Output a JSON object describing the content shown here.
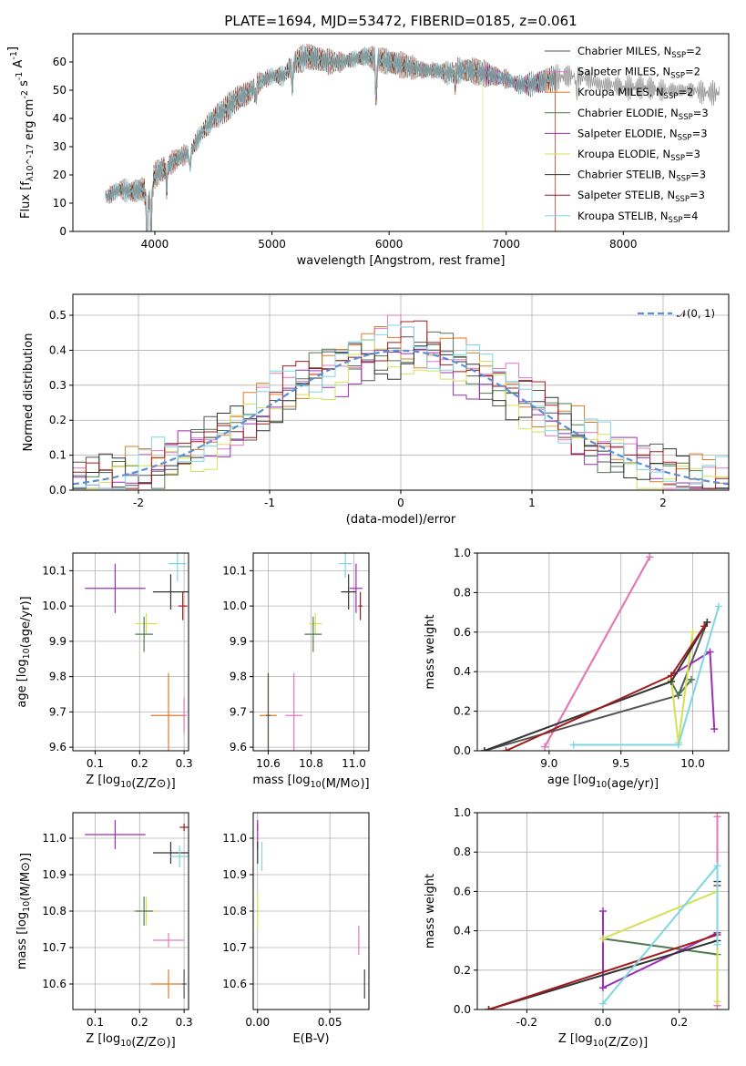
{
  "figure": {
    "title": "PLATE=1694, MJD=53472, FIBERID=0185, z=0.061"
  },
  "colors": {
    "Chabrier MILES": "#555555",
    "Salpeter MILES": "#e377c2",
    "Kroupa MILES": "#e07b2a",
    "Chabrier ELODIE": "#4f7a4f",
    "Salpeter ELODIE": "#9b2fb5",
    "Kroupa ELODIE": "#d4e157",
    "Chabrier STELIB": "#333333",
    "Salpeter STELIB": "#a01c1c",
    "Kroupa STELIB": "#7fd6e0",
    "normal": "#5b8fd6",
    "spectrum": "#999999"
  },
  "chart_data": [
    {
      "id": "spectrum",
      "type": "line",
      "xlabel": "wavelength [Angstrom, rest frame]",
      "ylabel": "Flux [f_λ10^-17 erg cm^-2 s^-1 A^-1]",
      "xlim": [
        3300,
        8900
      ],
      "ylim": [
        0,
        70
      ],
      "xticks": [
        4000,
        5000,
        6000,
        7000,
        8000
      ],
      "yticks": [
        0,
        10,
        20,
        30,
        40,
        50,
        60
      ],
      "grid": false,
      "legend_position": "top-right",
      "legend": [
        {
          "name": "Chabrier MILES",
          "sub": "N_SSP=2"
        },
        {
          "name": "Salpeter MILES",
          "sub": "N_SSP=2"
        },
        {
          "name": "Kroupa MILES",
          "sub": "N_SSP=2"
        },
        {
          "name": "Chabrier ELODIE",
          "sub": "N_SSP=3"
        },
        {
          "name": "Salpeter ELODIE",
          "sub": "N_SSP=3"
        },
        {
          "name": "Kroupa ELODIE",
          "sub": "N_SSP=3"
        },
        {
          "name": "Chabrier STELIB",
          "sub": "N_SSP=3"
        },
        {
          "name": "Salpeter STELIB",
          "sub": "N_SSP=3"
        },
        {
          "name": "Kroupa STELIB",
          "sub": "N_SSP=4"
        }
      ],
      "continuum": [
        [
          3580,
          12
        ],
        [
          3700,
          15
        ],
        [
          3800,
          14
        ],
        [
          3900,
          15
        ],
        [
          3950,
          12
        ],
        [
          4000,
          20
        ],
        [
          4100,
          23
        ],
        [
          4200,
          26
        ],
        [
          4300,
          28
        ],
        [
          4400,
          35
        ],
        [
          4500,
          40
        ],
        [
          4600,
          43
        ],
        [
          4700,
          47
        ],
        [
          4800,
          49
        ],
        [
          4900,
          53
        ],
        [
          5000,
          55
        ],
        [
          5100,
          55
        ],
        [
          5150,
          58
        ],
        [
          5200,
          60
        ],
        [
          5300,
          62
        ],
        [
          5400,
          61
        ],
        [
          5500,
          60
        ],
        [
          5600,
          60
        ],
        [
          5700,
          61
        ],
        [
          5800,
          62
        ],
        [
          5900,
          61
        ],
        [
          6000,
          60
        ],
        [
          6100,
          59
        ],
        [
          6200,
          58
        ],
        [
          6300,
          57
        ],
        [
          6400,
          57
        ],
        [
          6500,
          56
        ],
        [
          6600,
          57
        ],
        [
          6700,
          57
        ],
        [
          6800,
          56
        ],
        [
          6900,
          55
        ],
        [
          7000,
          54
        ],
        [
          7100,
          52
        ],
        [
          7200,
          52
        ],
        [
          7300,
          53
        ],
        [
          7400,
          54
        ],
        [
          7500,
          55
        ],
        [
          7600,
          55
        ],
        [
          7700,
          54
        ],
        [
          7800,
          52
        ],
        [
          7900,
          52
        ],
        [
          8000,
          51
        ],
        [
          8100,
          51
        ],
        [
          8200,
          51
        ],
        [
          8300,
          50
        ],
        [
          8400,
          50
        ],
        [
          8500,
          50
        ],
        [
          8600,
          50
        ],
        [
          8700,
          49
        ],
        [
          8820,
          49
        ]
      ],
      "absorption": [
        [
          3933,
          20
        ],
        [
          3968,
          18
        ],
        [
          4101,
          8
        ],
        [
          4300,
          6
        ],
        [
          4861,
          5
        ],
        [
          5175,
          8
        ],
        [
          5890,
          15
        ],
        [
          6563,
          4
        ],
        [
          7600,
          6
        ]
      ],
      "cutoffs": [
        {
          "model": "Kroupa ELODIE",
          "x": 6800
        },
        {
          "model": "Salpeter STELIB",
          "x": 7420
        },
        {
          "model": "Kroupa MILES",
          "x": 7420
        }
      ]
    },
    {
      "id": "residuals",
      "type": "line",
      "xlabel": "(data-model)/error",
      "ylabel": "Normed distribution",
      "xlim": [
        -2.5,
        2.5
      ],
      "ylim": [
        0,
        0.56
      ],
      "xticks": [
        -2,
        -1,
        0,
        1,
        2
      ],
      "yticks": [
        0.0,
        0.1,
        0.2,
        0.3,
        0.4,
        0.5
      ],
      "grid": true,
      "legend_position": "top-right",
      "legend": [
        {
          "name": "𝒩(0, 1)"
        }
      ],
      "bin_width": 0.1
    },
    {
      "id": "age-Z",
      "type": "scatter",
      "xlabel": "Z [log10(Z/Z⊙)]",
      "ylabel": "age  [log10(age/yr)]",
      "xlim": [
        0.05,
        0.31
      ],
      "ylim": [
        9.59,
        10.15
      ],
      "xticks": [
        0.1,
        0.2,
        0.3
      ],
      "yticks": [
        9.6,
        9.7,
        9.8,
        9.9,
        10.0,
        10.1
      ],
      "grid": true,
      "points": [
        {
          "model": "Salpeter ELODIE",
          "x": 0.145,
          "y": 10.05,
          "ex": 0.068,
          "ey": 0.07
        },
        {
          "model": "Kroupa STELIB",
          "x": 0.285,
          "y": 10.12,
          "ex": 0.02,
          "ey": 0.05
        },
        {
          "model": "Chabrier STELIB",
          "x": 0.27,
          "y": 10.04,
          "ex": 0.04,
          "ey": 0.05
        },
        {
          "model": "Salpeter STELIB",
          "x": 0.297,
          "y": 10.0,
          "ex": 0.01,
          "ey": 0.04
        },
        {
          "model": "Kroupa ELODIE",
          "x": 0.215,
          "y": 9.95,
          "ex": 0.025,
          "ey": 0.03
        },
        {
          "model": "Chabrier ELODIE",
          "x": 0.21,
          "y": 9.92,
          "ex": 0.02,
          "ey": 0.05
        },
        {
          "model": "Kroupa MILES",
          "x": 0.265,
          "y": 9.69,
          "ex": 0.04,
          "ey": 0.12
        },
        {
          "model": "Salpeter MILES",
          "x": 0.3,
          "y": 9.69,
          "ex": 0.005,
          "ey": 0.05
        }
      ]
    },
    {
      "id": "age-mass",
      "type": "scatter",
      "xlabel": "mass [log10(M/M⊙)]",
      "ylabel": "",
      "xlim": [
        10.53,
        11.07
      ],
      "ylim": [
        9.59,
        10.15
      ],
      "xticks": [
        10.6,
        10.8,
        11.0
      ],
      "yticks": [
        9.6,
        9.7,
        9.8,
        9.9,
        10.0,
        10.1
      ],
      "grid": true,
      "points": [
        {
          "model": "Kroupa STELIB",
          "x": 10.96,
          "y": 10.12,
          "ex": 0.03,
          "ey": 0.04
        },
        {
          "model": "Salpeter ELODIE",
          "x": 11.01,
          "y": 10.05,
          "ex": 0.03,
          "ey": 0.07
        },
        {
          "model": "Chabrier STELIB",
          "x": 10.975,
          "y": 10.04,
          "ex": 0.035,
          "ey": 0.05
        },
        {
          "model": "Salpeter STELIB",
          "x": 11.03,
          "y": 10.0,
          "ex": 0.01,
          "ey": 0.04
        },
        {
          "model": "Kroupa ELODIE",
          "x": 10.82,
          "y": 9.95,
          "ex": 0.03,
          "ey": 0.03
        },
        {
          "model": "Chabrier ELODIE",
          "x": 10.81,
          "y": 9.92,
          "ex": 0.04,
          "ey": 0.05
        },
        {
          "model": "Kroupa MILES",
          "x": 10.6,
          "y": 9.69,
          "ex": 0.04,
          "ey": 0.12
        },
        {
          "model": "Salpeter MILES",
          "x": 10.72,
          "y": 9.69,
          "ex": 0.04,
          "ey": 0.12
        },
        {
          "model": "Chabrier MILES",
          "x": 10.6,
          "y": 9.69,
          "ex": 0.01,
          "ey": 0.12
        }
      ]
    },
    {
      "id": "weight-age",
      "type": "line",
      "xlabel": "age  [log10(age/yr)]",
      "ylabel": "mass weight",
      "xlim": [
        8.5,
        10.25
      ],
      "ylim": [
        0,
        1
      ],
      "xticks": [
        9.0,
        9.5,
        10.0
      ],
      "yticks": [
        0.0,
        0.2,
        0.4,
        0.6,
        0.8,
        1.0
      ],
      "grid": true,
      "series": [
        {
          "model": "Kroupa MILES",
          "points": [
            [
              8.97,
              0.02
            ],
            [
              9.7,
              0.98
            ]
          ]
        },
        {
          "model": "Salpeter MILES",
          "points": [
            [
              8.97,
              0.02
            ],
            [
              9.7,
              0.98
            ]
          ]
        },
        {
          "model": "Chabrier MILES",
          "points": [
            [
              8.55,
              0.0
            ],
            [
              9.9,
              0.28
            ],
            [
              10.1,
              0.65
            ]
          ]
        },
        {
          "model": "Chabrier ELODIE",
          "points": [
            [
              9.85,
              0.35
            ],
            [
              9.9,
              0.28
            ],
            [
              9.99,
              0.36
            ]
          ]
        },
        {
          "model": "Salpeter ELODIE",
          "points": [
            [
              9.87,
              0.39
            ],
            [
              10.12,
              0.5
            ],
            [
              10.15,
              0.11
            ]
          ]
        },
        {
          "model": "Kroupa ELODIE",
          "points": [
            [
              9.85,
              0.36
            ],
            [
              9.9,
              0.04
            ],
            [
              10.0,
              0.6
            ]
          ]
        },
        {
          "model": "Chabrier STELIB",
          "points": [
            [
              8.55,
              0.0
            ],
            [
              9.85,
              0.35
            ],
            [
              10.1,
              0.65
            ]
          ]
        },
        {
          "model": "Salpeter STELIB",
          "points": [
            [
              8.7,
              0.0
            ],
            [
              9.85,
              0.38
            ],
            [
              10.08,
              0.63
            ]
          ]
        },
        {
          "model": "Kroupa STELIB",
          "points": [
            [
              9.17,
              0.03
            ],
            [
              9.9,
              0.03
            ],
            [
              10.18,
              0.73
            ]
          ]
        }
      ]
    },
    {
      "id": "mass-Z",
      "type": "scatter",
      "xlabel": "Z [log10(Z/Z⊙)]",
      "ylabel": "mass [log10(M/M⊙)]",
      "xlim": [
        0.05,
        0.31
      ],
      "ylim": [
        10.53,
        11.07
      ],
      "xticks": [
        0.1,
        0.2,
        0.3
      ],
      "yticks": [
        10.6,
        10.7,
        10.8,
        10.9,
        11.0
      ],
      "grid": true,
      "points": [
        {
          "model": "Salpeter ELODIE",
          "x": 0.145,
          "y": 11.01,
          "ex": 0.068,
          "ey": 0.04
        },
        {
          "model": "Salpeter STELIB",
          "x": 0.3,
          "y": 11.03,
          "ex": 0.01,
          "ey": 0.01
        },
        {
          "model": "Chabrier STELIB",
          "x": 0.27,
          "y": 10.96,
          "ex": 0.04,
          "ey": 0.03
        },
        {
          "model": "Kroupa STELIB",
          "x": 0.29,
          "y": 10.95,
          "ex": 0.02,
          "ey": 0.03
        },
        {
          "model": "Kroupa ELODIE",
          "x": 0.215,
          "y": 10.8,
          "ex": 0.025,
          "ey": 0.04
        },
        {
          "model": "Chabrier ELODIE",
          "x": 0.21,
          "y": 10.8,
          "ex": 0.02,
          "ey": 0.04
        },
        {
          "model": "Salpeter MILES",
          "x": 0.265,
          "y": 10.72,
          "ex": 0.035,
          "ey": 0.02
        },
        {
          "model": "Kroupa MILES",
          "x": 0.265,
          "y": 10.6,
          "ex": 0.04,
          "ey": 0.04
        },
        {
          "model": "Chabrier MILES",
          "x": 0.3,
          "y": 10.6,
          "ex": 0.005,
          "ey": 0.04
        }
      ]
    },
    {
      "id": "mass-EBV",
      "type": "scatter",
      "xlabel": "E(B-V)",
      "ylabel": "",
      "xlim": [
        -0.003,
        0.077
      ],
      "ylim": [
        10.53,
        11.07
      ],
      "xticks": [
        0.0,
        0.05
      ],
      "yticks": [
        10.6,
        10.7,
        10.8,
        10.9,
        11.0
      ],
      "grid": true,
      "points": [
        {
          "model": "Salpeter STELIB",
          "x": 0.0,
          "y": 11.03,
          "ex": 0,
          "ey": 0.01
        },
        {
          "model": "Salpeter ELODIE",
          "x": 0.0,
          "y": 11.01,
          "ex": 0,
          "ey": 0.04
        },
        {
          "model": "Chabrier STELIB",
          "x": 0.0,
          "y": 10.96,
          "ex": 0,
          "ey": 0.03
        },
        {
          "model": "Kroupa STELIB",
          "x": 0.003,
          "y": 10.95,
          "ex": 0,
          "ey": 0.04
        },
        {
          "model": "Kroupa ELODIE",
          "x": 0.0,
          "y": 10.8,
          "ex": 0,
          "ey": 0.05
        },
        {
          "model": "Salpeter MILES",
          "x": 0.07,
          "y": 10.72,
          "ex": 0,
          "ey": 0.04
        },
        {
          "model": "Kroupa MILES",
          "x": 0.074,
          "y": 10.6,
          "ex": 0,
          "ey": 0.04
        },
        {
          "model": "Chabrier MILES",
          "x": 0.074,
          "y": 10.6,
          "ex": 0,
          "ey": 0.04
        }
      ]
    },
    {
      "id": "weight-Z",
      "type": "line",
      "xlabel": "Z [log10(Z/Z⊙)]",
      "ylabel": "mass weight",
      "xlim": [
        -0.33,
        0.33
      ],
      "ylim": [
        0,
        1
      ],
      "xticks": [
        -0.2,
        0.0,
        0.2
      ],
      "yticks": [
        0.0,
        0.2,
        0.4,
        0.6,
        0.8,
        1.0
      ],
      "grid": true,
      "series": [
        {
          "model": "Kroupa MILES",
          "points": [
            [
              0.3,
              0.02
            ],
            [
              0.3,
              0.98
            ]
          ]
        },
        {
          "model": "Salpeter MILES",
          "points": [
            [
              0.3,
              0.02
            ],
            [
              0.3,
              0.98
            ]
          ]
        },
        {
          "model": "Chabrier ELODIE",
          "points": [
            [
              0.0,
              0.36
            ],
            [
              0.3,
              0.28
            ]
          ]
        },
        {
          "model": "Salpeter ELODIE",
          "points": [
            [
              0.0,
              0.5
            ],
            [
              0.0,
              0.11
            ],
            [
              0.3,
              0.39
            ]
          ]
        },
        {
          "model": "Kroupa ELODIE",
          "points": [
            [
              0.0,
              0.36
            ],
            [
              0.3,
              0.6
            ],
            [
              0.3,
              0.04
            ]
          ]
        },
        {
          "model": "Chabrier STELIB",
          "points": [
            [
              -0.3,
              0.0
            ],
            [
              0.3,
              0.35
            ],
            [
              0.3,
              0.65
            ]
          ]
        },
        {
          "model": "Salpeter STELIB",
          "points": [
            [
              -0.3,
              0.0
            ],
            [
              0.3,
              0.38
            ],
            [
              0.3,
              0.63
            ]
          ]
        },
        {
          "model": "Kroupa STELIB",
          "points": [
            [
              0.0,
              0.03
            ],
            [
              0.3,
              0.73
            ],
            [
              0.3,
              0.33
            ]
          ]
        }
      ]
    }
  ]
}
